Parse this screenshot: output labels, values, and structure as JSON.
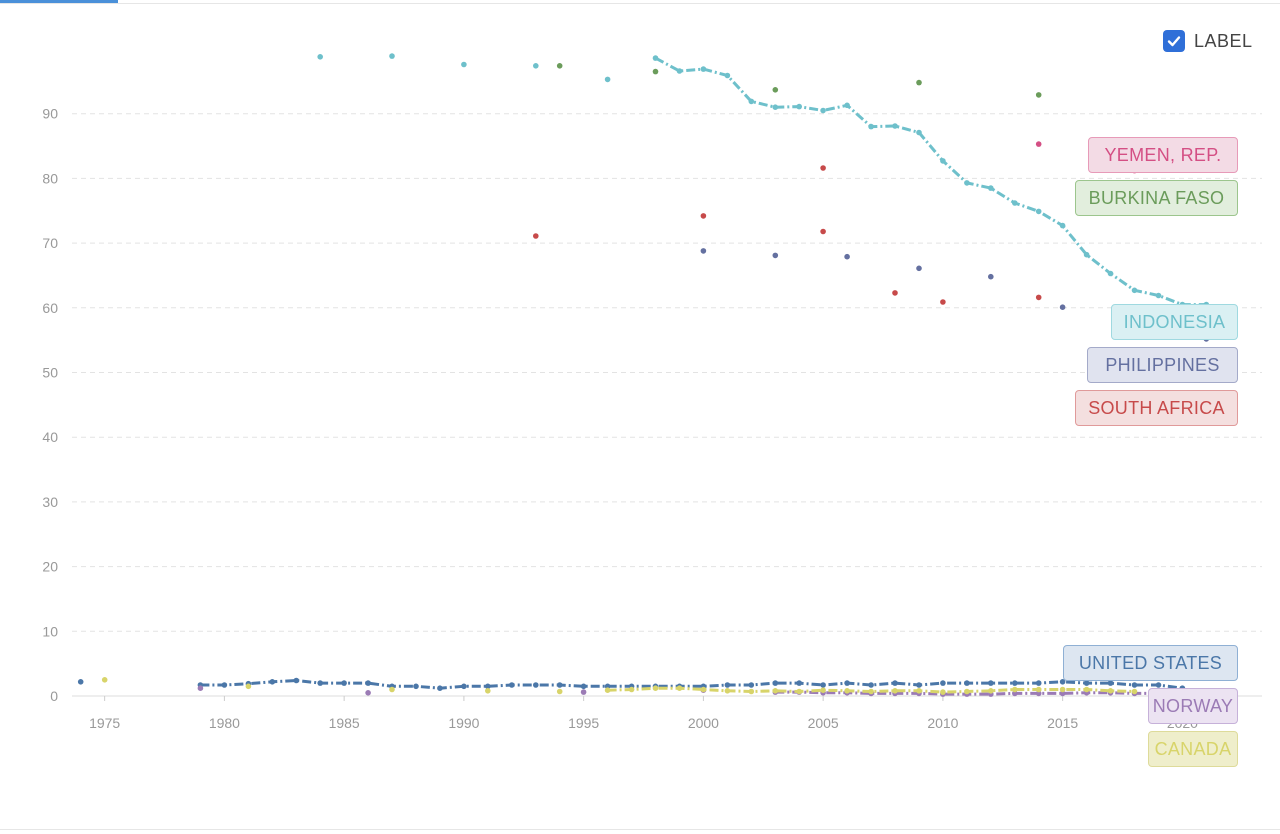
{
  "header": {
    "label_toggle_text": "LABEL",
    "label_toggle_checked": true
  },
  "chart_data": {
    "type": "line",
    "title": "",
    "xlabel": "",
    "ylabel": "",
    "xlim": [
      1973,
      2023
    ],
    "ylim": [
      0,
      100
    ],
    "x_ticks": [
      1975,
      1980,
      1985,
      1990,
      1995,
      2000,
      2005,
      2010,
      2015,
      2020
    ],
    "y_ticks": [
      0,
      10,
      20,
      30,
      40,
      50,
      60,
      70,
      80,
      90
    ],
    "grid": "horizontal dashed",
    "legend": "labels at right end of series",
    "series": [
      {
        "name": "YEMEN, REP.",
        "color": "#d44f84",
        "label_bg": "#f3dbe5",
        "label_border": "#e79ab8",
        "x": [
          2014,
          2018
        ],
        "y": [
          85.3,
          81.2
        ]
      },
      {
        "name": "BURKINA FASO",
        "color": "#6b9c5b",
        "label_bg": "#e2eedd",
        "label_border": "#9cc58d",
        "x": [
          1994,
          1998,
          2003,
          2009,
          2014
        ],
        "y": [
          97.4,
          96.5,
          93.7,
          94.8,
          92.9
        ]
      },
      {
        "name": "INDONESIA",
        "color": "#6ec0cb",
        "label_bg": "#daf0f3",
        "label_border": "#9fd9e0",
        "x": [
          1984,
          1987,
          1990,
          1993,
          1996,
          1998,
          1999,
          2000,
          2001,
          2002,
          2003,
          2004,
          2005,
          2006,
          2007,
          2008,
          2009,
          2010,
          2011,
          2012,
          2013,
          2014,
          2015,
          2016,
          2017,
          2018,
          2019,
          2020,
          2021
        ],
        "y": [
          98.8,
          98.9,
          97.6,
          97.4,
          95.3,
          98.6,
          96.6,
          96.9,
          95.9,
          91.9,
          91.0,
          91.1,
          90.5,
          91.3,
          88.0,
          88.1,
          87.1,
          82.7,
          79.3,
          78.5,
          76.2,
          74.9,
          72.7,
          68.2,
          65.3,
          62.7,
          61.9,
          60.5,
          60.5
        ]
      },
      {
        "name": "PHILIPPINES",
        "color": "#6470a0",
        "label_bg": "#e0e3ef",
        "label_border": "#a4aac9",
        "x": [
          2000,
          2003,
          2006,
          2009,
          2012,
          2015,
          2021
        ],
        "y": [
          68.8,
          68.1,
          67.9,
          66.1,
          64.8,
          60.1,
          55.2
        ]
      },
      {
        "name": "SOUTH AFRICA",
        "color": "#c74a4a",
        "label_bg": "#f4dfdf",
        "label_border": "#e09a9a",
        "x": [
          1993,
          2000,
          2005,
          2005,
          2008,
          2010,
          2014
        ],
        "y": [
          71.1,
          74.2,
          81.6,
          71.8,
          62.3,
          60.9,
          61.6
        ]
      },
      {
        "name": "UNITED STATES",
        "color": "#4b77a8",
        "label_bg": "#dde6f1",
        "label_border": "#8fb0d4",
        "x": [
          1974,
          1979,
          1980,
          1981,
          1982,
          1983,
          1984,
          1985,
          1986,
          1987,
          1988,
          1989,
          1990,
          1991,
          1992,
          1993,
          1994,
          1995,
          1996,
          1997,
          1998,
          1999,
          2000,
          2001,
          2002,
          2003,
          2004,
          2005,
          2006,
          2007,
          2008,
          2009,
          2010,
          2011,
          2012,
          2013,
          2014,
          2015,
          2016,
          2017,
          2018,
          2019,
          2020
        ],
        "y": [
          2.2,
          1.7,
          1.7,
          1.9,
          2.2,
          2.4,
          2.0,
          2.0,
          2.0,
          1.5,
          1.5,
          1.2,
          1.5,
          1.5,
          1.7,
          1.7,
          1.7,
          1.5,
          1.5,
          1.5,
          1.5,
          1.5,
          1.5,
          1.7,
          1.7,
          2.0,
          2.0,
          1.7,
          2.0,
          1.7,
          2.0,
          1.7,
          2.0,
          2.0,
          2.0,
          2.0,
          2.0,
          2.2,
          2.0,
          2.0,
          1.7,
          1.7,
          1.2
        ]
      },
      {
        "name": "NORWAY",
        "color": "#9b7bb5",
        "label_bg": "#ece3f2",
        "label_border": "#c6b1d9",
        "x": [
          1979,
          1986,
          1995,
          2000,
          2003,
          2004,
          2005,
          2006,
          2007,
          2008,
          2009,
          2010,
          2011,
          2012,
          2013,
          2014,
          2015,
          2016,
          2017,
          2018,
          2019
        ],
        "y": [
          1.2,
          0.5,
          0.6,
          0.9,
          0.6,
          0.6,
          0.5,
          0.5,
          0.4,
          0.4,
          0.4,
          0.3,
          0.3,
          0.3,
          0.4,
          0.4,
          0.4,
          0.5,
          0.5,
          0.4,
          0.4
        ]
      },
      {
        "name": "CANADA",
        "color": "#d8d46a",
        "label_bg": "#efeecb",
        "label_border": "#dedb9a",
        "x": [
          1975,
          1981,
          1987,
          1991,
          1994,
          1996,
          1997,
          1998,
          1999,
          2000,
          2001,
          2002,
          2003,
          2004,
          2005,
          2006,
          2007,
          2008,
          2009,
          2010,
          2011,
          2012,
          2013,
          2014,
          2015,
          2016,
          2017,
          2018
        ],
        "y": [
          2.5,
          1.5,
          1.0,
          0.8,
          0.7,
          0.9,
          1.0,
          1.2,
          1.2,
          1.0,
          0.8,
          0.7,
          0.8,
          0.7,
          0.9,
          0.8,
          0.7,
          0.8,
          0.8,
          0.6,
          0.7,
          0.8,
          1.0,
          1.0,
          1.0,
          1.0,
          0.8,
          0.7
        ]
      }
    ]
  }
}
